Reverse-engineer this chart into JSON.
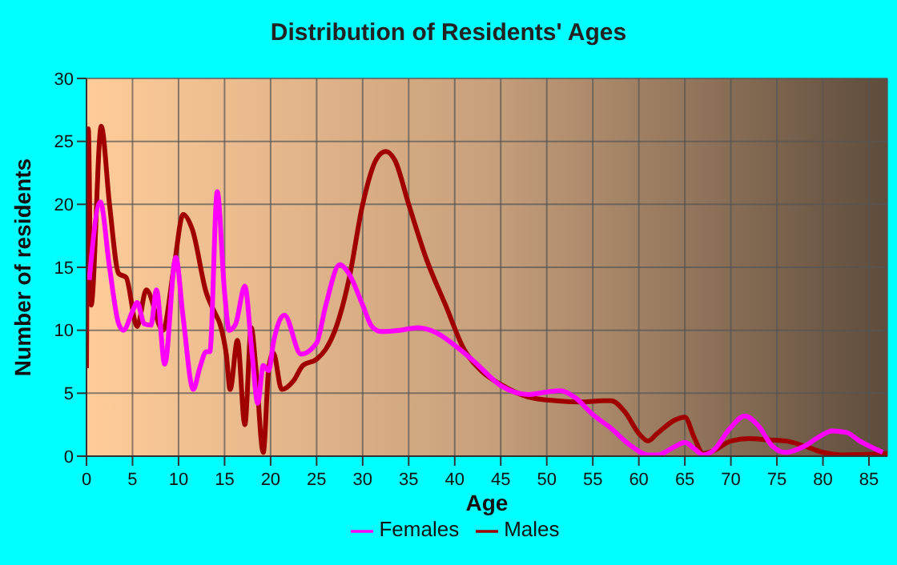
{
  "chart_data": {
    "type": "line",
    "title": "Distribution of Residents' Ages",
    "xlabel": "Age",
    "ylabel": "Number of residents",
    "xlim": [
      0,
      87
    ],
    "xticks": [
      0,
      5,
      10,
      15,
      20,
      25,
      30,
      35,
      40,
      45,
      50,
      55,
      60,
      65,
      70,
      75,
      80,
      85
    ],
    "ylim": [
      0,
      30
    ],
    "yticks": [
      0,
      5,
      10,
      15,
      20,
      25,
      30
    ],
    "grid": true,
    "legend": "bottom",
    "marker": "none",
    "series": [
      {
        "name": "Males",
        "color": "#a00000",
        "x": [
          0,
          0.2,
          0.5,
          1.6,
          2.5,
          3.5,
          4.3,
          5.5,
          6.5,
          8.3,
          9.5,
          10.5,
          11.5,
          13,
          14,
          14.5,
          15.2,
          15.6,
          16.4,
          17.2,
          17.9,
          18.4,
          19.2,
          19.8,
          20.3,
          21.2,
          22.5,
          23.5,
          25,
          26,
          27,
          28.5,
          30,
          31.5,
          32.5,
          33.5,
          35,
          37,
          39,
          41,
          43,
          45,
          48,
          51,
          54,
          56,
          57,
          58.5,
          60,
          61,
          62,
          64,
          65,
          66,
          67,
          68,
          70,
          72,
          74,
          76,
          78,
          80,
          82,
          87
        ],
        "values": [
          7,
          26,
          12,
          26.2,
          20,
          14.5,
          14.2,
          10.3,
          13.2,
          10,
          15,
          19.2,
          18,
          13,
          11.3,
          10.5,
          8,
          5.3,
          9.2,
          2.5,
          10.2,
          7,
          0.3,
          7,
          8.2,
          5.3,
          6,
          7.2,
          7.7,
          8.5,
          10,
          14,
          20,
          23.6,
          24.2,
          23.5,
          20,
          15.5,
          12,
          8.5,
          6.7,
          5.7,
          4.7,
          4.4,
          4.3,
          4.4,
          4.4,
          3.5,
          1.8,
          1.2,
          1.8,
          2.9,
          3.1,
          1.5,
          0.2,
          0.4,
          1.2,
          1.4,
          1.3,
          1.2,
          0.8,
          0.3,
          0.1,
          0.2
        ]
      },
      {
        "name": "Females",
        "color": "#ff00ff",
        "x": [
          0.3,
          1.5,
          2.5,
          3.5,
          4,
          5,
          5.5,
          6.3,
          7,
          7.6,
          8.5,
          9.7,
          10.5,
          11.6,
          12.3,
          13,
          13.4,
          14.2,
          15,
          15.5,
          16.2,
          17.2,
          18,
          18.6,
          19.2,
          19.8,
          20.3,
          21.5,
          23.3,
          25,
          26,
          27.5,
          28.5,
          30,
          31,
          32,
          34,
          36,
          38,
          40,
          42,
          45,
          48,
          50,
          51.5,
          53,
          55,
          57,
          59,
          61,
          62,
          64,
          65,
          66,
          67,
          68,
          70,
          71.5,
          73,
          74.5,
          76,
          78,
          79.5,
          81,
          82.5,
          84,
          86.5
        ],
        "values": [
          14,
          20.2,
          15,
          10.5,
          10,
          11.5,
          12.2,
          10.5,
          10.4,
          13.2,
          7.3,
          15.8,
          11,
          5.3,
          7,
          8.3,
          8.3,
          21,
          13,
          10,
          10.5,
          13.5,
          8,
          4.2,
          7.2,
          6.8,
          9,
          11.2,
          8.1,
          9,
          12,
          15.2,
          14.5,
          12,
          10.3,
          9.9,
          10,
          10.2,
          9.8,
          8.8,
          7.6,
          5.6,
          4.9,
          5.1,
          5.2,
          4.7,
          3.3,
          2.2,
          0.9,
          0.1,
          0.1,
          0.8,
          1.1,
          0.6,
          0.1,
          0.4,
          2.3,
          3.2,
          2.4,
          0.8,
          0.3,
          0.8,
          1.5,
          2,
          1.9,
          1.2,
          0.3
        ]
      }
    ]
  }
}
